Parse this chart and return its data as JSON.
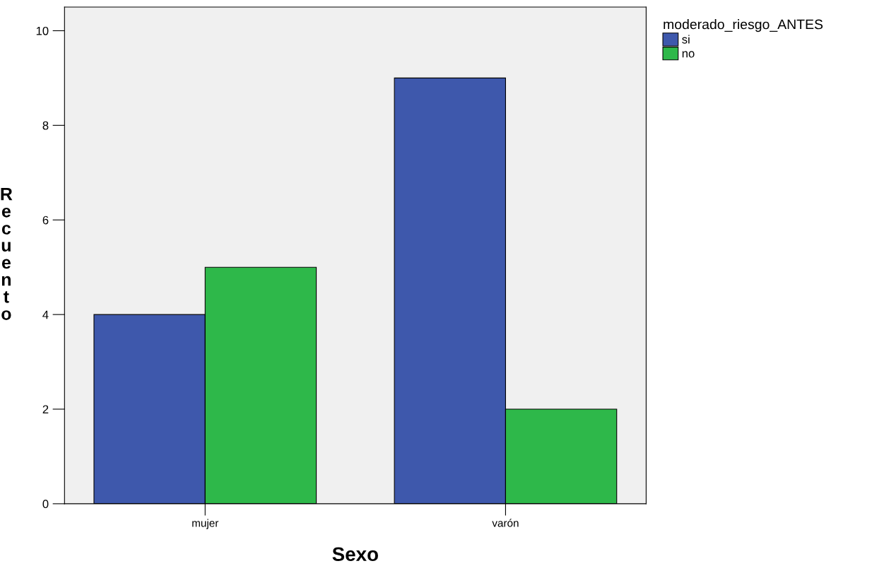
{
  "chart_data": {
    "type": "bar",
    "xlabel": "Sexo",
    "ylabel": "Recuento",
    "legend_title": "moderado_riesgo_ANTES",
    "categories": [
      "mujer",
      "varón"
    ],
    "series": [
      {
        "name": "si",
        "color": "#3e58ac",
        "values": [
          4,
          9
        ]
      },
      {
        "name": "no",
        "color": "#2eb84a",
        "values": [
          5,
          2
        ]
      }
    ],
    "ylim": [
      0,
      10.5
    ],
    "yticks": [
      0,
      2,
      4,
      6,
      8,
      10
    ],
    "grid": false,
    "legend": "top right"
  }
}
